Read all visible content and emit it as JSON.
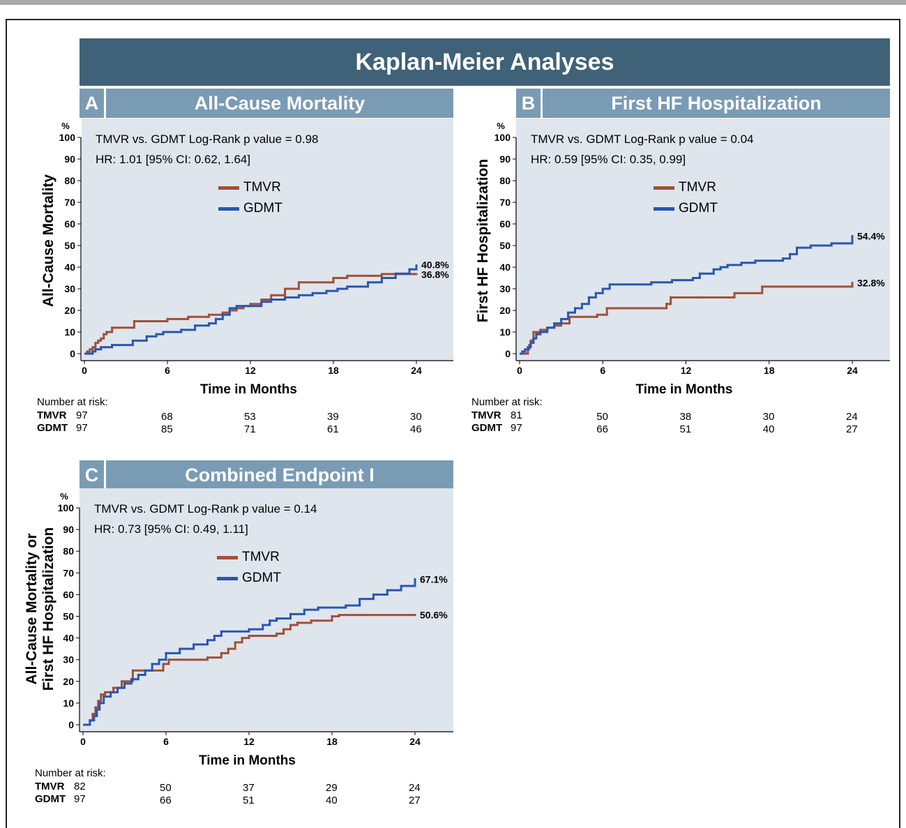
{
  "main_title": "Kaplan-Meier Analyses",
  "colors": {
    "tmvr": "#a0503a",
    "gdmt": "#2a56b0",
    "title_bg": "#3f6279",
    "panel_title_bg": "#7a9bb4",
    "plot_bg": "#dfe5ec"
  },
  "panels": [
    {
      "letter": "A",
      "title": "All-Cause Mortality",
      "ylabel_lines": [
        "All-Cause Mortality"
      ],
      "pct_label": "%",
      "stat1": "TMVR vs. GDMT Log-Rank p value = 0.98",
      "stat2": "HR: 1.01 [95% CI: 0.62, 1.64]",
      "legend": [
        "TMVR",
        "GDMT"
      ],
      "xlabel": "Time in Months",
      "end_labels": {
        "gdmt": "40.8%",
        "tmvr": "36.8%"
      },
      "risk": {
        "header": "Number at risk:",
        "tmvr_label": "TMVR",
        "gdmt_label": "GDMT",
        "tmvr": [
          "97",
          "68",
          "53",
          "39",
          "30"
        ],
        "gdmt": [
          "97",
          "85",
          "71",
          "61",
          "46"
        ]
      }
    },
    {
      "letter": "B",
      "title": "First HF Hospitalization",
      "ylabel_lines": [
        "First HF Hospitalization"
      ],
      "pct_label": "%",
      "stat1": "TMVR vs. GDMT Log-Rank p value = 0.04",
      "stat2": "HR: 0.59 [95% CI: 0.35, 0.99]",
      "legend": [
        "TMVR",
        "GDMT"
      ],
      "xlabel": "Time in Months",
      "end_labels": {
        "gdmt": "54.4%",
        "tmvr": "32.8%"
      },
      "risk": {
        "header": "Number at risk:",
        "tmvr_label": "TMVR",
        "gdmt_label": "GDMT",
        "tmvr": [
          "81",
          "50",
          "38",
          "30",
          "24"
        ],
        "gdmt": [
          "97",
          "66",
          "51",
          "40",
          "27"
        ]
      }
    },
    {
      "letter": "C",
      "title": "Combined Endpoint I",
      "ylabel_lines": [
        "All-Cause Mortality or",
        "First HF Hospitalization"
      ],
      "pct_label": "%",
      "stat1": "TMVR vs. GDMT Log-Rank p value = 0.14",
      "stat2": "HR: 0.73 [95% CI: 0.49, 1.11]",
      "legend": [
        "TMVR",
        "GDMT"
      ],
      "xlabel": "Time in Months",
      "end_labels": {
        "gdmt": "67.1%",
        "tmvr": "50.6%"
      },
      "risk": {
        "header": "Number at risk:",
        "tmvr_label": "TMVR",
        "gdmt_label": "GDMT",
        "tmvr": [
          "82",
          "50",
          "37",
          "29",
          "24"
        ],
        "gdmt": [
          "97",
          "66",
          "51",
          "40",
          "27"
        ]
      }
    }
  ],
  "chart_data": [
    {
      "type": "line",
      "title": "All-Cause Mortality",
      "xlabel": "Time in Months",
      "ylabel": "All-Cause Mortality",
      "xlim": [
        0,
        24
      ],
      "ylim": [
        0,
        100
      ],
      "xticks": [
        0,
        6,
        12,
        18,
        24
      ],
      "yticks": [
        0,
        10,
        20,
        30,
        40,
        50,
        60,
        70,
        80,
        90,
        100
      ],
      "series": [
        {
          "name": "TMVR",
          "x": [
            0,
            0.2,
            0.4,
            0.6,
            0.8,
            1.0,
            1.2,
            1.4,
            1.6,
            2.0,
            3.6,
            6.0,
            7.5,
            9.0,
            10.0,
            10.5,
            11.0,
            11.5,
            12.0,
            12.8,
            13.5,
            14.5,
            15.5,
            18.0,
            19.0,
            21.5,
            24
          ],
          "y": [
            0,
            1,
            2,
            3,
            5,
            6,
            7,
            9,
            10,
            12,
            15,
            16,
            17,
            18,
            19,
            20,
            21,
            22,
            23,
            25,
            27,
            30,
            33,
            35,
            36,
            36.8,
            36.8
          ]
        },
        {
          "name": "GDMT",
          "x": [
            0,
            0.5,
            0.6,
            0.8,
            1.0,
            1.2,
            1.5,
            2.0,
            3.5,
            4.5,
            5.2,
            5.7,
            7.0,
            8.0,
            9.0,
            9.5,
            10.0,
            10.5,
            11.0,
            12.8,
            13.5,
            14.5,
            15.5,
            16.5,
            17.5,
            18.3,
            19.0,
            20.5,
            21.5,
            22.5,
            23.5,
            24
          ],
          "y": [
            0,
            0,
            1,
            2,
            2,
            3,
            3,
            4,
            6,
            8,
            9,
            10,
            11,
            13,
            14,
            16,
            18,
            21,
            22,
            24,
            25,
            26,
            27,
            28,
            29,
            30,
            31,
            33,
            35,
            37,
            39,
            40.8
          ]
        }
      ]
    },
    {
      "type": "line",
      "title": "First HF Hospitalization",
      "xlabel": "Time in Months",
      "ylabel": "First HF Hospitalization",
      "xlim": [
        0,
        24
      ],
      "ylim": [
        0,
        100
      ],
      "xticks": [
        0,
        6,
        12,
        18,
        24
      ],
      "yticks": [
        0,
        10,
        20,
        30,
        40,
        50,
        60,
        70,
        80,
        90,
        100
      ],
      "series": [
        {
          "name": "TMVR",
          "x": [
            0,
            0.2,
            0.4,
            0.6,
            0.7,
            0.8,
            1.0,
            1.5,
            2.0,
            2.5,
            3.0,
            3.6,
            5.6,
            6.3,
            10.6,
            10.9,
            12.8,
            15.5,
            17.5,
            24
          ],
          "y": [
            0,
            0,
            0,
            2,
            4,
            6,
            10,
            11,
            12,
            13,
            14,
            17,
            18,
            21,
            23,
            26,
            26,
            28,
            31,
            32.8
          ]
        },
        {
          "name": "GDMT",
          "x": [
            0,
            0.2,
            0.4,
            0.6,
            0.8,
            1.0,
            1.2,
            1.5,
            2.0,
            2.5,
            3.0,
            3.5,
            4.0,
            4.5,
            5.0,
            5.5,
            6.0,
            6.5,
            9.5,
            11.0,
            12.5,
            13.0,
            14.0,
            14.5,
            15.0,
            16.0,
            17.0,
            19.0,
            19.5,
            20.0,
            21.0,
            22.5,
            24
          ],
          "y": [
            0,
            1,
            2,
            3,
            5,
            7,
            9,
            10,
            12,
            14,
            16,
            19,
            21,
            23,
            26,
            28,
            30,
            32,
            33,
            34,
            35,
            37,
            39,
            40,
            41,
            42,
            43,
            44,
            46,
            49,
            50,
            51,
            54.4
          ]
        }
      ]
    },
    {
      "type": "line",
      "title": "Combined Endpoint I",
      "xlabel": "Time in Months",
      "ylabel": "All-Cause Mortality or First HF Hospitalization",
      "xlim": [
        0,
        24
      ],
      "ylim": [
        0,
        100
      ],
      "xticks": [
        0,
        6,
        12,
        18,
        24
      ],
      "yticks": [
        0,
        10,
        20,
        30,
        40,
        50,
        60,
        70,
        80,
        90,
        100
      ],
      "series": [
        {
          "name": "TMVR",
          "x": [
            0,
            0.3,
            0.5,
            0.7,
            0.9,
            1.1,
            1.3,
            1.6,
            2.2,
            2.8,
            3.6,
            5.8,
            6.2,
            7.0,
            9.0,
            10.0,
            10.5,
            11.0,
            11.5,
            12.0,
            14.0,
            14.5,
            15.0,
            15.5,
            16.5,
            18.0,
            18.5,
            24
          ],
          "y": [
            0,
            0,
            2,
            5,
            8,
            11,
            14,
            15,
            17,
            20,
            25,
            28,
            30,
            30,
            31,
            33,
            35,
            38,
            40,
            41,
            42,
            44,
            46,
            47,
            48,
            50,
            50.6,
            50.6
          ]
        },
        {
          "name": "GDMT",
          "x": [
            0,
            0.5,
            0.8,
            1.0,
            1.2,
            1.5,
            2.0,
            2.5,
            3.0,
            3.5,
            4.0,
            4.5,
            5.0,
            5.5,
            6.0,
            7.0,
            8.0,
            9.0,
            9.5,
            10.0,
            12.0,
            13.0,
            13.5,
            14.0,
            15.0,
            16.0,
            17.0,
            19.0,
            20.0,
            21.0,
            22.0,
            23.0,
            24
          ],
          "y": [
            0,
            2,
            4,
            7,
            10,
            13,
            15,
            17,
            19,
            21,
            23,
            25,
            28,
            30,
            33,
            35,
            37,
            39,
            41,
            43,
            44,
            46,
            48,
            49,
            51,
            53,
            54,
            55,
            58,
            60,
            62,
            64,
            67.1
          ]
        }
      ]
    }
  ]
}
